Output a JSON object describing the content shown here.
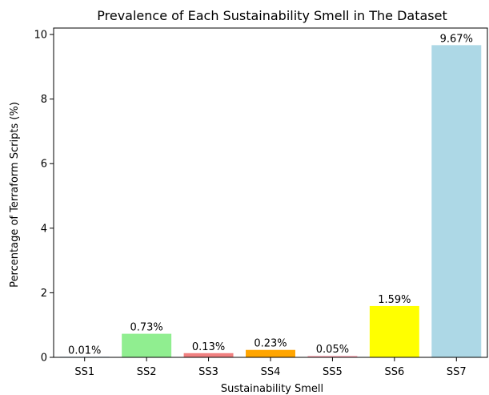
{
  "chart_data": {
    "type": "bar",
    "title": "Prevalence of Each Sustainability Smell in The Dataset",
    "xlabel": "Sustainability Smell",
    "ylabel": "Percentage of Terraform Scripts (%)",
    "categories": [
      "SS1",
      "SS2",
      "SS3",
      "SS4",
      "SS5",
      "SS6",
      "SS7"
    ],
    "values": [
      0.01,
      0.73,
      0.13,
      0.23,
      0.05,
      1.59,
      9.67
    ],
    "data_labels": [
      "0.01%",
      "0.73%",
      "0.13%",
      "0.23%",
      "0.05%",
      "1.59%",
      "9.67%"
    ],
    "bar_colors": [
      "#1f77b4",
      "#90ee90",
      "#f08080",
      "#ffa500",
      "#ffb6c1",
      "#ffff00",
      "#add8e6"
    ],
    "ylim": [
      0,
      10.2
    ],
    "yticks": [
      0,
      2,
      4,
      6,
      8,
      10
    ],
    "grid": false,
    "legend": false
  }
}
